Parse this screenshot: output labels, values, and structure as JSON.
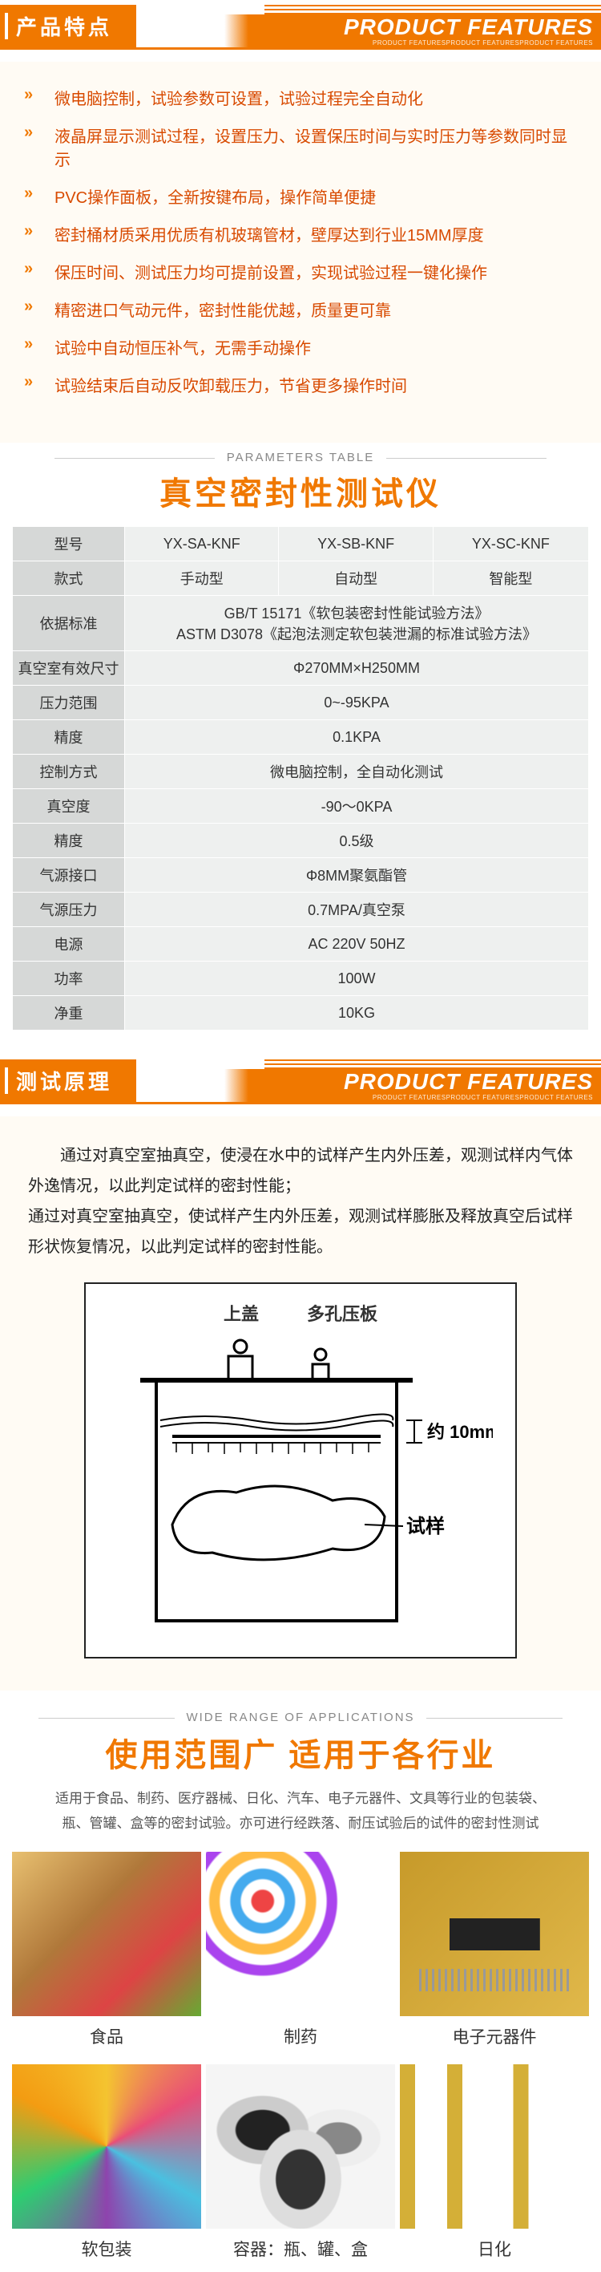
{
  "colors": {
    "accent": "#f07800",
    "feature_text": "#d84a00",
    "cream_bg": "#fffbf4",
    "table_header": "#d6d8d7",
    "table_cell": "#eef0ef"
  },
  "section1": {
    "title_cn": "产品特点",
    "title_en": "PRODUCT FEATURES",
    "subtitle_en": "PRODUCT FEATURESPRODUCT FEATURESPRODUCT FEATURES"
  },
  "features": [
    "微电脑控制，试验参数可设置，试验过程完全自动化",
    "液晶屏显示测试过程，设置压力、设置保压时间与实时压力等参数同时显示",
    "PVC操作面板，全新按键布局，操作简单便捷",
    "密封桶材质采用优质有机玻璃管材，壁厚达到行业15MM厚度",
    "保压时间、测试压力均可提前设置，实现试验过程一键化操作",
    "精密进口气动元件，密封性能优越，质量更可靠",
    "试验中自动恒压补气，无需手动操作",
    "试验结束后自动反吹卸载压力，节省更多操作时间"
  ],
  "params": {
    "subtitle": "PARAMETERS TABLE",
    "title": "真空密封性测试仪",
    "header_label": "型号",
    "models": [
      "YX-SA-KNF",
      "YX-SB-KNF",
      "YX-SC-KNF"
    ],
    "style_label": "款式",
    "styles": [
      "手动型",
      "自动型",
      "智能型"
    ],
    "rows": [
      {
        "label": "依据标准",
        "value": "GB/T 15171《软包装密封性能试验方法》\nASTM D3078《起泡法测定软包装泄漏的标准试验方法》"
      },
      {
        "label": "真空室有效尺寸",
        "value": "Φ270MM×H250MM"
      },
      {
        "label": "压力范围",
        "value": "0~-95KPA"
      },
      {
        "label": "精度",
        "value": "0.1KPA"
      },
      {
        "label": "控制方式",
        "value": "微电脑控制，全自动化测试"
      },
      {
        "label": "真空度",
        "value": "-90～0KPA"
      },
      {
        "label": "精度",
        "value": "0.5级"
      },
      {
        "label": "气源接口",
        "value": "Φ8MM聚氨酯管"
      },
      {
        "label": "气源压力",
        "value": "0.7MPA/真空泵"
      },
      {
        "label": "电源",
        "value": "AC 220V 50HZ"
      },
      {
        "label": "功率",
        "value": "100W"
      },
      {
        "label": "净重",
        "value": "10KG"
      }
    ]
  },
  "section2": {
    "title_cn": "测试原理",
    "title_en": "PRODUCT FEATURES",
    "subtitle_en": "PRODUCT FEATURESPRODUCT FEATURESPRODUCT FEATURES"
  },
  "principle": {
    "p1": "通过对真空室抽真空，使浸在水中的试样产生内外压差，观测试样内气体外逸情况，以此判定试样的密封性能；",
    "p2": "通过对真空室抽真空，使试样产生内外压差，观测试样膨胀及释放真空后试样形状恢复情况，以此判定试样的密封性能。",
    "diagram": {
      "label_lid": "上盖",
      "label_plate": "多孔压板",
      "label_depth": "约 10mm",
      "label_sample": "试样"
    }
  },
  "apps": {
    "subtitle": "WIDE RANGE OF APPLICATIONS",
    "title": "使用范围广 适用于各行业",
    "desc": "适用于食品、制药、医疗器械、日化、汽车、电子元器件、文具等行业的包装袋、瓶、管罐、盒等的密封试验。亦可进行经跌落、耐压试验后的试件的密封性测试",
    "items": [
      {
        "label": "食品",
        "img_class": "img-food"
      },
      {
        "label": "制药",
        "img_class": "img-pharma"
      },
      {
        "label": "电子元器件",
        "img_class": "img-pcb"
      },
      {
        "label": "软包装",
        "img_class": "img-pack"
      },
      {
        "label": "容器：瓶、罐、盒",
        "img_class": "img-jar"
      },
      {
        "label": "日化",
        "img_class": "img-cosm"
      }
    ]
  }
}
